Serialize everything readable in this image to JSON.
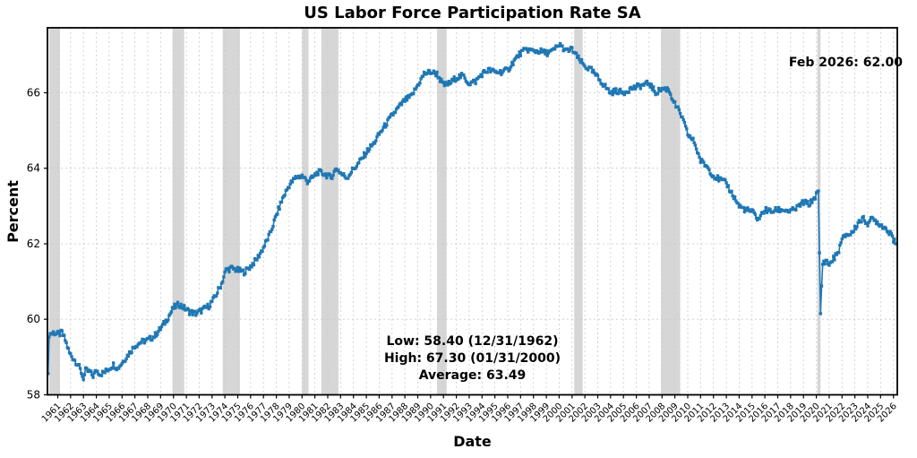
{
  "title": "US Labor Force Participation Rate SA",
  "axes": {
    "xlabel": "Date",
    "ylabel": "Percent"
  },
  "annotations": {
    "latest": "Feb 2026: 62.00",
    "low": "Low: 58.40 (12/31/1962)",
    "high": "High: 67.30 (01/31/2000)",
    "average": "Average: 63.49"
  },
  "chart_data": {
    "type": "line",
    "title": "US Labor Force Participation Rate SA",
    "xlabel": "Date",
    "ylabel": "Percent",
    "frequency": "monthly",
    "xlim": [
      1960.2,
      2026.3
    ],
    "ylim": [
      58,
      67.72
    ],
    "y_ticks": [
      58,
      60,
      62,
      64,
      66
    ],
    "x_ticks": [
      1961,
      1962,
      1963,
      1964,
      1965,
      1966,
      1967,
      1968,
      1969,
      1970,
      1971,
      1972,
      1973,
      1974,
      1975,
      1976,
      1977,
      1978,
      1979,
      1980,
      1981,
      1982,
      1983,
      1984,
      1985,
      1986,
      1987,
      1988,
      1989,
      1990,
      1991,
      1992,
      1993,
      1994,
      1995,
      1996,
      1997,
      1998,
      1999,
      2000,
      2001,
      2002,
      2003,
      2004,
      2005,
      2006,
      2007,
      2008,
      2009,
      2010,
      2011,
      2012,
      2013,
      2014,
      2015,
      2016,
      2017,
      2018,
      2019,
      2020,
      2021,
      2022,
      2023,
      2024,
      2025,
      2026
    ],
    "grid": true,
    "legend": "none",
    "colors": {
      "line": "#1f77b4",
      "recession_band": "#d6d6d6",
      "grid": "#c9c9c9",
      "spine": "#000000"
    },
    "key_points": {
      "low": [
        1963.0,
        58.4
      ],
      "high": [
        2000.08,
        67.3
      ],
      "covid_trough": [
        2020.33,
        60.15
      ],
      "latest": [
        2026.17,
        62.0
      ],
      "average": 63.49
    },
    "recessions": [
      [
        1960.33,
        1961.17
      ],
      [
        1969.92,
        1970.83
      ],
      [
        1973.83,
        1975.17
      ],
      [
        1980.0,
        1980.5
      ],
      [
        1981.5,
        1982.83
      ],
      [
        1990.5,
        1991.25
      ],
      [
        2001.17,
        2001.83
      ],
      [
        2007.92,
        2009.42
      ],
      [
        2020.08,
        2020.33
      ]
    ],
    "series_start": 1960.25,
    "series_months": 792,
    "series_anchors": [
      [
        1960.25,
        58.5
      ],
      [
        1960.33,
        59.6
      ],
      [
        1960.67,
        59.65
      ],
      [
        1961.08,
        59.6
      ],
      [
        1961.33,
        59.65
      ],
      [
        1961.58,
        59.45
      ],
      [
        1961.92,
        59.1
      ],
      [
        1962.25,
        58.95
      ],
      [
        1962.58,
        58.8
      ],
      [
        1962.83,
        58.6
      ],
      [
        1963.0,
        58.4
      ],
      [
        1963.17,
        58.65
      ],
      [
        1963.5,
        58.6
      ],
      [
        1963.75,
        58.5
      ],
      [
        1964.0,
        58.65
      ],
      [
        1964.33,
        58.55
      ],
      [
        1964.67,
        58.6
      ],
      [
        1965.0,
        58.7
      ],
      [
        1965.33,
        58.8
      ],
      [
        1965.67,
        58.7
      ],
      [
        1966.0,
        58.85
      ],
      [
        1966.33,
        59.0
      ],
      [
        1966.67,
        59.15
      ],
      [
        1967.0,
        59.3
      ],
      [
        1967.5,
        59.4
      ],
      [
        1968.0,
        59.45
      ],
      [
        1968.5,
        59.55
      ],
      [
        1969.0,
        59.75
      ],
      [
        1969.5,
        60.0
      ],
      [
        1970.0,
        60.3
      ],
      [
        1970.42,
        60.4
      ],
      [
        1970.83,
        60.3
      ],
      [
        1971.25,
        60.2
      ],
      [
        1971.75,
        60.15
      ],
      [
        1972.25,
        60.25
      ],
      [
        1972.75,
        60.35
      ],
      [
        1973.25,
        60.6
      ],
      [
        1973.75,
        60.95
      ],
      [
        1974.08,
        61.3
      ],
      [
        1974.5,
        61.35
      ],
      [
        1975.0,
        61.3
      ],
      [
        1975.5,
        61.25
      ],
      [
        1976.0,
        61.4
      ],
      [
        1976.5,
        61.6
      ],
      [
        1977.0,
        61.9
      ],
      [
        1977.5,
        62.25
      ],
      [
        1978.0,
        62.75
      ],
      [
        1978.5,
        63.2
      ],
      [
        1979.0,
        63.55
      ],
      [
        1979.5,
        63.75
      ],
      [
        1980.0,
        63.8
      ],
      [
        1980.42,
        63.65
      ],
      [
        1980.83,
        63.75
      ],
      [
        1981.25,
        63.9
      ],
      [
        1981.75,
        63.85
      ],
      [
        1982.25,
        63.75
      ],
      [
        1982.67,
        64.0
      ],
      [
        1983.08,
        63.85
      ],
      [
        1983.5,
        63.75
      ],
      [
        1983.92,
        63.95
      ],
      [
        1984.33,
        64.1
      ],
      [
        1984.75,
        64.3
      ],
      [
        1985.17,
        64.5
      ],
      [
        1985.58,
        64.65
      ],
      [
        1986.0,
        64.9
      ],
      [
        1986.5,
        65.15
      ],
      [
        1987.0,
        65.4
      ],
      [
        1987.5,
        65.6
      ],
      [
        1988.0,
        65.8
      ],
      [
        1988.5,
        65.9
      ],
      [
        1989.0,
        66.2
      ],
      [
        1989.5,
        66.5
      ],
      [
        1990.0,
        66.55
      ],
      [
        1990.5,
        66.5
      ],
      [
        1991.0,
        66.2
      ],
      [
        1991.5,
        66.25
      ],
      [
        1992.0,
        66.4
      ],
      [
        1992.5,
        66.45
      ],
      [
        1993.0,
        66.25
      ],
      [
        1993.5,
        66.3
      ],
      [
        1994.0,
        66.5
      ],
      [
        1994.5,
        66.6
      ],
      [
        1995.0,
        66.55
      ],
      [
        1995.5,
        66.55
      ],
      [
        1996.0,
        66.6
      ],
      [
        1996.5,
        66.85
      ],
      [
        1997.0,
        67.05
      ],
      [
        1997.5,
        67.15
      ],
      [
        1998.0,
        67.1
      ],
      [
        1998.5,
        67.1
      ],
      [
        1999.0,
        67.05
      ],
      [
        1999.5,
        67.1
      ],
      [
        2000.08,
        67.3
      ],
      [
        2000.5,
        67.1
      ],
      [
        2001.0,
        67.15
      ],
      [
        2001.5,
        66.9
      ],
      [
        2002.0,
        66.7
      ],
      [
        2002.5,
        66.6
      ],
      [
        2003.0,
        66.4
      ],
      [
        2003.5,
        66.2
      ],
      [
        2004.0,
        66.0
      ],
      [
        2004.5,
        66.05
      ],
      [
        2005.0,
        66.0
      ],
      [
        2005.5,
        66.1
      ],
      [
        2006.0,
        66.15
      ],
      [
        2006.5,
        66.2
      ],
      [
        2007.0,
        66.25
      ],
      [
        2007.5,
        66.0
      ],
      [
        2008.0,
        66.1
      ],
      [
        2008.5,
        66.1
      ],
      [
        2009.0,
        65.7
      ],
      [
        2009.5,
        65.4
      ],
      [
        2010.0,
        64.9
      ],
      [
        2010.5,
        64.7
      ],
      [
        2011.0,
        64.2
      ],
      [
        2011.5,
        64.05
      ],
      [
        2012.0,
        63.8
      ],
      [
        2012.5,
        63.7
      ],
      [
        2013.0,
        63.6
      ],
      [
        2013.5,
        63.3
      ],
      [
        2014.0,
        63.0
      ],
      [
        2014.5,
        62.9
      ],
      [
        2015.0,
        62.85
      ],
      [
        2015.5,
        62.65
      ],
      [
        2016.0,
        62.9
      ],
      [
        2016.5,
        62.85
      ],
      [
        2017.0,
        62.9
      ],
      [
        2017.5,
        62.9
      ],
      [
        2018.0,
        62.85
      ],
      [
        2018.5,
        62.95
      ],
      [
        2019.0,
        63.1
      ],
      [
        2019.5,
        63.05
      ],
      [
        2020.0,
        63.3
      ],
      [
        2020.17,
        63.35
      ],
      [
        2020.33,
        60.15
      ],
      [
        2020.5,
        61.5
      ],
      [
        2020.75,
        61.55
      ],
      [
        2021.0,
        61.45
      ],
      [
        2021.33,
        61.6
      ],
      [
        2021.67,
        61.75
      ],
      [
        2022.0,
        62.1
      ],
      [
        2022.33,
        62.25
      ],
      [
        2022.67,
        62.25
      ],
      [
        2023.0,
        62.4
      ],
      [
        2023.33,
        62.6
      ],
      [
        2023.67,
        62.65
      ],
      [
        2024.0,
        62.55
      ],
      [
        2024.33,
        62.65
      ],
      [
        2024.67,
        62.6
      ],
      [
        2025.0,
        62.5
      ],
      [
        2025.33,
        62.45
      ],
      [
        2025.58,
        62.3
      ],
      [
        2025.83,
        62.35
      ],
      [
        2026.0,
        62.1
      ],
      [
        2026.17,
        62.0
      ]
    ]
  }
}
